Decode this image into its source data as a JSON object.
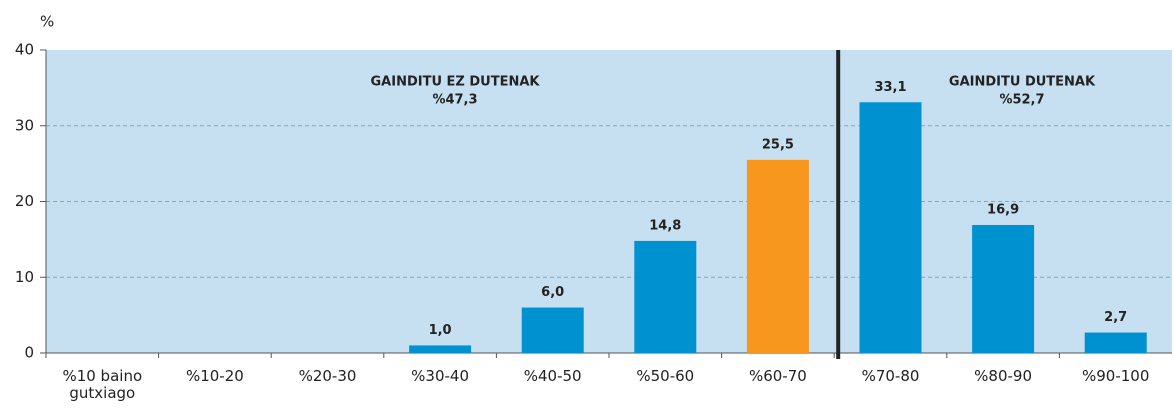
{
  "chart_data": {
    "type": "bar",
    "y_label": "%",
    "categories": [
      "%10 baino gutxiago",
      "%10-20",
      "%20-30",
      "%30-40",
      "%40-50",
      "%50-60",
      "%60-70",
      "%70-80",
      "%80-90",
      "%90-100"
    ],
    "values": [
      0,
      0,
      0,
      1.0,
      6.0,
      14.8,
      25.5,
      33.1,
      16.9,
      2.7
    ],
    "value_labels": [
      null,
      null,
      null,
      "1,0",
      "6,0",
      "14,8",
      "25,5",
      "33,1",
      "16,9",
      "2,7"
    ],
    "colors": [
      "#0091d0",
      "#0091d0",
      "#0091d0",
      "#0091d0",
      "#0091d0",
      "#0091d0",
      "#f7971e",
      "#0091d0",
      "#0091d0",
      "#0091d0"
    ],
    "ylim": [
      0,
      40
    ],
    "yticks": [
      0,
      10,
      20,
      30,
      40
    ],
    "grid": true,
    "annotations": [
      {
        "title": "GAINDITU EZ DUTENAK",
        "text": "%47,3"
      },
      {
        "title": "GAINDITU DUTENAK",
        "text": "%52,7"
      }
    ]
  }
}
